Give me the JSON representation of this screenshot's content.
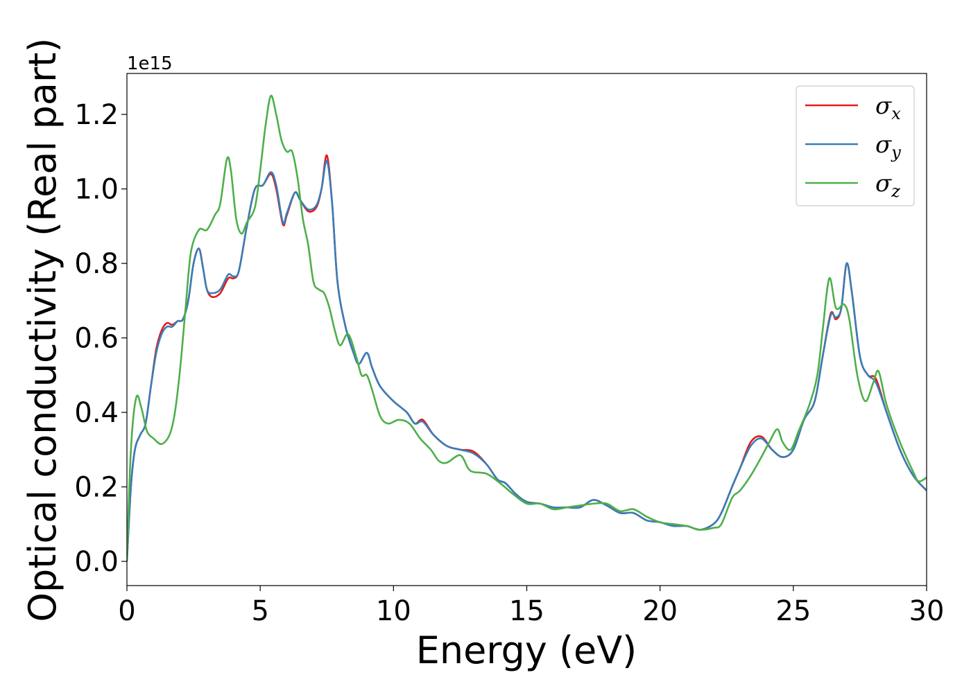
{
  "chart_data": {
    "type": "line",
    "title": "",
    "xlabel": "Energy (eV)",
    "ylabel": "Optical conductivity (Real part)",
    "y_offset_text": "1e15",
    "xlim": [
      0,
      30
    ],
    "ylim": [
      -0.065,
      1.31
    ],
    "x_ticks": [
      0,
      5,
      10,
      15,
      20,
      25,
      30
    ],
    "x_tick_labels": [
      "0",
      "5",
      "10",
      "15",
      "20",
      "25",
      "30"
    ],
    "y_ticks": [
      0.0,
      0.2,
      0.4,
      0.6,
      0.8,
      1.0,
      1.2
    ],
    "y_tick_labels": [
      "0.0",
      "0.2",
      "0.4",
      "0.6",
      "0.8",
      "1.0",
      "1.2"
    ],
    "grid": false,
    "legend_position": "top-right",
    "series": [
      {
        "name": "σx",
        "label_main": "σ",
        "label_sub": "x",
        "color": "#e41a1c",
        "points": [
          [
            0,
            0
          ],
          [
            0.15,
            0.2
          ],
          [
            0.3,
            0.3
          ],
          [
            0.5,
            0.34
          ],
          [
            0.7,
            0.37
          ],
          [
            0.9,
            0.47
          ],
          [
            1.1,
            0.57
          ],
          [
            1.3,
            0.62
          ],
          [
            1.5,
            0.64
          ],
          [
            1.7,
            0.635
          ],
          [
            1.9,
            0.645
          ],
          [
            2.1,
            0.65
          ],
          [
            2.3,
            0.7
          ],
          [
            2.5,
            0.8
          ],
          [
            2.7,
            0.84
          ],
          [
            2.85,
            0.79
          ],
          [
            3.0,
            0.73
          ],
          [
            3.2,
            0.71
          ],
          [
            3.5,
            0.72
          ],
          [
            3.8,
            0.76
          ],
          [
            4.0,
            0.76
          ],
          [
            4.2,
            0.78
          ],
          [
            4.5,
            0.9
          ],
          [
            4.8,
            1.0
          ],
          [
            5.1,
            1.01
          ],
          [
            5.4,
            1.04
          ],
          [
            5.6,
            1.0
          ],
          [
            5.85,
            0.905
          ],
          [
            6.0,
            0.93
          ],
          [
            6.3,
            0.99
          ],
          [
            6.5,
            0.97
          ],
          [
            6.8,
            0.94
          ],
          [
            7.1,
            0.95
          ],
          [
            7.3,
            1.0
          ],
          [
            7.5,
            1.09
          ],
          [
            7.7,
            0.96
          ],
          [
            7.9,
            0.75
          ],
          [
            8.2,
            0.63
          ],
          [
            8.5,
            0.56
          ],
          [
            8.7,
            0.53
          ],
          [
            9.0,
            0.56
          ],
          [
            9.2,
            0.52
          ],
          [
            9.5,
            0.47
          ],
          [
            10.0,
            0.43
          ],
          [
            10.5,
            0.4
          ],
          [
            10.8,
            0.37
          ],
          [
            11.1,
            0.38
          ],
          [
            11.5,
            0.34
          ],
          [
            12.0,
            0.31
          ],
          [
            12.5,
            0.3
          ],
          [
            13.0,
            0.295
          ],
          [
            13.5,
            0.26
          ],
          [
            13.9,
            0.22
          ],
          [
            14.2,
            0.21
          ],
          [
            14.6,
            0.18
          ],
          [
            15.0,
            0.16
          ],
          [
            15.5,
            0.155
          ],
          [
            16.0,
            0.145
          ],
          [
            16.5,
            0.145
          ],
          [
            17.0,
            0.145
          ],
          [
            17.5,
            0.165
          ],
          [
            18.0,
            0.15
          ],
          [
            18.5,
            0.13
          ],
          [
            19.0,
            0.13
          ],
          [
            19.5,
            0.11
          ],
          [
            20.0,
            0.105
          ],
          [
            20.5,
            0.095
          ],
          [
            21.0,
            0.095
          ],
          [
            21.5,
            0.085
          ],
          [
            22.0,
            0.1
          ],
          [
            22.3,
            0.13
          ],
          [
            22.7,
            0.2
          ],
          [
            23.0,
            0.25
          ],
          [
            23.4,
            0.32
          ],
          [
            23.8,
            0.335
          ],
          [
            24.2,
            0.3
          ],
          [
            24.6,
            0.28
          ],
          [
            25.0,
            0.3
          ],
          [
            25.4,
            0.38
          ],
          [
            25.8,
            0.43
          ],
          [
            26.1,
            0.55
          ],
          [
            26.4,
            0.665
          ],
          [
            26.6,
            0.65
          ],
          [
            26.8,
            0.68
          ],
          [
            27.0,
            0.8
          ],
          [
            27.2,
            0.72
          ],
          [
            27.5,
            0.55
          ],
          [
            27.8,
            0.5
          ],
          [
            28.1,
            0.49
          ],
          [
            28.5,
            0.4
          ],
          [
            29.0,
            0.3
          ],
          [
            29.5,
            0.23
          ],
          [
            30.0,
            0.19
          ]
        ]
      },
      {
        "name": "σy",
        "label_main": "σ",
        "label_sub": "y",
        "color": "#377eb8",
        "points": [
          [
            0,
            0
          ],
          [
            0.15,
            0.2
          ],
          [
            0.3,
            0.3
          ],
          [
            0.5,
            0.34
          ],
          [
            0.7,
            0.37
          ],
          [
            0.9,
            0.47
          ],
          [
            1.1,
            0.56
          ],
          [
            1.3,
            0.61
          ],
          [
            1.5,
            0.63
          ],
          [
            1.7,
            0.63
          ],
          [
            1.9,
            0.645
          ],
          [
            2.1,
            0.65
          ],
          [
            2.3,
            0.7
          ],
          [
            2.5,
            0.8
          ],
          [
            2.7,
            0.84
          ],
          [
            2.85,
            0.79
          ],
          [
            3.0,
            0.73
          ],
          [
            3.2,
            0.72
          ],
          [
            3.5,
            0.73
          ],
          [
            3.8,
            0.77
          ],
          [
            4.0,
            0.765
          ],
          [
            4.2,
            0.78
          ],
          [
            4.5,
            0.9
          ],
          [
            4.8,
            1.0
          ],
          [
            5.1,
            1.01
          ],
          [
            5.4,
            1.045
          ],
          [
            5.6,
            1.01
          ],
          [
            5.85,
            0.91
          ],
          [
            6.0,
            0.935
          ],
          [
            6.3,
            0.99
          ],
          [
            6.5,
            0.97
          ],
          [
            6.8,
            0.945
          ],
          [
            7.1,
            0.955
          ],
          [
            7.3,
            1.0
          ],
          [
            7.5,
            1.075
          ],
          [
            7.7,
            0.96
          ],
          [
            7.9,
            0.75
          ],
          [
            8.2,
            0.63
          ],
          [
            8.5,
            0.56
          ],
          [
            8.7,
            0.53
          ],
          [
            9.0,
            0.56
          ],
          [
            9.2,
            0.52
          ],
          [
            9.5,
            0.47
          ],
          [
            10.0,
            0.43
          ],
          [
            10.5,
            0.4
          ],
          [
            10.8,
            0.37
          ],
          [
            11.1,
            0.375
          ],
          [
            11.5,
            0.34
          ],
          [
            12.0,
            0.31
          ],
          [
            12.5,
            0.3
          ],
          [
            13.0,
            0.29
          ],
          [
            13.5,
            0.26
          ],
          [
            13.9,
            0.22
          ],
          [
            14.2,
            0.21
          ],
          [
            14.6,
            0.18
          ],
          [
            15.0,
            0.16
          ],
          [
            15.5,
            0.155
          ],
          [
            16.0,
            0.145
          ],
          [
            16.5,
            0.145
          ],
          [
            17.0,
            0.145
          ],
          [
            17.5,
            0.165
          ],
          [
            18.0,
            0.15
          ],
          [
            18.5,
            0.13
          ],
          [
            19.0,
            0.13
          ],
          [
            19.5,
            0.11
          ],
          [
            20.0,
            0.105
          ],
          [
            20.5,
            0.095
          ],
          [
            21.0,
            0.095
          ],
          [
            21.5,
            0.085
          ],
          [
            22.0,
            0.1
          ],
          [
            22.3,
            0.13
          ],
          [
            22.7,
            0.2
          ],
          [
            23.0,
            0.25
          ],
          [
            23.4,
            0.31
          ],
          [
            23.8,
            0.33
          ],
          [
            24.2,
            0.3
          ],
          [
            24.6,
            0.28
          ],
          [
            25.0,
            0.3
          ],
          [
            25.4,
            0.38
          ],
          [
            25.8,
            0.43
          ],
          [
            26.1,
            0.55
          ],
          [
            26.4,
            0.66
          ],
          [
            26.6,
            0.655
          ],
          [
            26.8,
            0.68
          ],
          [
            27.0,
            0.8
          ],
          [
            27.2,
            0.72
          ],
          [
            27.5,
            0.55
          ],
          [
            27.8,
            0.5
          ],
          [
            28.1,
            0.48
          ],
          [
            28.5,
            0.4
          ],
          [
            29.0,
            0.3
          ],
          [
            29.5,
            0.23
          ],
          [
            30.0,
            0.19
          ]
        ]
      },
      {
        "name": "σz",
        "label_main": "σ",
        "label_sub": "z",
        "color": "#4daf4a",
        "points": [
          [
            0,
            0
          ],
          [
            0.15,
            0.3
          ],
          [
            0.35,
            0.44
          ],
          [
            0.55,
            0.41
          ],
          [
            0.75,
            0.35
          ],
          [
            1.0,
            0.33
          ],
          [
            1.3,
            0.315
          ],
          [
            1.6,
            0.34
          ],
          [
            1.8,
            0.4
          ],
          [
            2.0,
            0.52
          ],
          [
            2.2,
            0.68
          ],
          [
            2.4,
            0.83
          ],
          [
            2.7,
            0.89
          ],
          [
            3.0,
            0.89
          ],
          [
            3.3,
            0.93
          ],
          [
            3.5,
            0.96
          ],
          [
            3.75,
            1.08
          ],
          [
            3.9,
            1.05
          ],
          [
            4.1,
            0.92
          ],
          [
            4.3,
            0.88
          ],
          [
            4.5,
            0.91
          ],
          [
            4.8,
            0.95
          ],
          [
            5.0,
            1.05
          ],
          [
            5.2,
            1.17
          ],
          [
            5.4,
            1.25
          ],
          [
            5.6,
            1.2
          ],
          [
            5.8,
            1.13
          ],
          [
            6.0,
            1.1
          ],
          [
            6.2,
            1.1
          ],
          [
            6.4,
            1.03
          ],
          [
            6.6,
            0.92
          ],
          [
            6.8,
            0.85
          ],
          [
            7.0,
            0.75
          ],
          [
            7.2,
            0.73
          ],
          [
            7.4,
            0.72
          ],
          [
            7.6,
            0.68
          ],
          [
            7.8,
            0.62
          ],
          [
            8.0,
            0.58
          ],
          [
            8.3,
            0.61
          ],
          [
            8.6,
            0.55
          ],
          [
            8.8,
            0.5
          ],
          [
            9.0,
            0.5
          ],
          [
            9.2,
            0.46
          ],
          [
            9.5,
            0.39
          ],
          [
            9.8,
            0.37
          ],
          [
            10.2,
            0.38
          ],
          [
            10.6,
            0.37
          ],
          [
            11.0,
            0.33
          ],
          [
            11.4,
            0.3
          ],
          [
            11.7,
            0.27
          ],
          [
            12.0,
            0.265
          ],
          [
            12.5,
            0.285
          ],
          [
            12.8,
            0.25
          ],
          [
            13.0,
            0.24
          ],
          [
            13.5,
            0.235
          ],
          [
            14.0,
            0.21
          ],
          [
            14.5,
            0.18
          ],
          [
            15.0,
            0.155
          ],
          [
            15.5,
            0.155
          ],
          [
            16.0,
            0.14
          ],
          [
            16.5,
            0.145
          ],
          [
            17.0,
            0.15
          ],
          [
            17.5,
            0.155
          ],
          [
            18.0,
            0.155
          ],
          [
            18.5,
            0.135
          ],
          [
            19.0,
            0.14
          ],
          [
            19.5,
            0.12
          ],
          [
            20.0,
            0.105
          ],
          [
            20.5,
            0.1
          ],
          [
            21.0,
            0.095
          ],
          [
            21.5,
            0.085
          ],
          [
            22.0,
            0.09
          ],
          [
            22.3,
            0.1
          ],
          [
            22.7,
            0.17
          ],
          [
            23.0,
            0.19
          ],
          [
            23.4,
            0.23
          ],
          [
            23.8,
            0.28
          ],
          [
            24.1,
            0.32
          ],
          [
            24.4,
            0.355
          ],
          [
            24.6,
            0.32
          ],
          [
            24.9,
            0.3
          ],
          [
            25.2,
            0.35
          ],
          [
            25.6,
            0.42
          ],
          [
            25.9,
            0.5
          ],
          [
            26.1,
            0.62
          ],
          [
            26.35,
            0.76
          ],
          [
            26.6,
            0.68
          ],
          [
            26.9,
            0.69
          ],
          [
            27.1,
            0.65
          ],
          [
            27.4,
            0.5
          ],
          [
            27.7,
            0.43
          ],
          [
            28.0,
            0.48
          ],
          [
            28.2,
            0.51
          ],
          [
            28.5,
            0.42
          ],
          [
            29.0,
            0.32
          ],
          [
            29.5,
            0.24
          ],
          [
            29.7,
            0.215
          ],
          [
            30.0,
            0.225
          ]
        ]
      }
    ]
  }
}
